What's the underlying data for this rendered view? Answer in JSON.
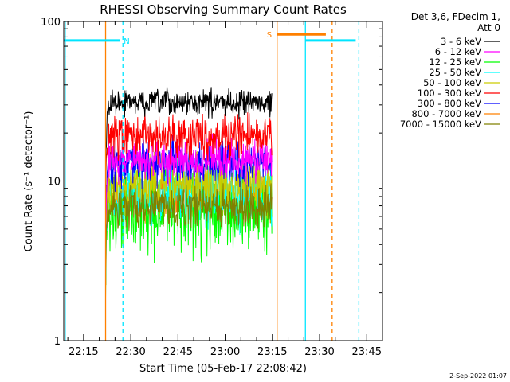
{
  "chart_data": {
    "type": "line",
    "title": "RHESSI Observing Summary Count Rates",
    "xlabel": "Start Time (05-Feb-17 22:08:42)",
    "ylabel": "Count Rate (s⁻¹ detector⁻¹)",
    "y_scale": "log",
    "ylim": [
      1,
      100
    ],
    "xlim": [
      "22:08:42",
      "23:50:00"
    ],
    "x_ticks": [
      "22:15",
      "22:30",
      "22:45",
      "23:00",
      "23:15",
      "23:30",
      "23:45"
    ],
    "y_ticks": [
      "1",
      "10",
      "100"
    ],
    "legend_header": [
      "Det 3,6, FDecim 1,",
      "Att 0"
    ],
    "legend_position": "top-right",
    "footer_date": "2-Sep-2022 01:07",
    "data_start": "22:22:00",
    "data_end": "23:14:50",
    "series": [
      {
        "name": "3 - 6 keV",
        "color": "#000000",
        "level": 31,
        "spread": 0.06
      },
      {
        "name": "6 - 12 keV",
        "color": "#ff00ff",
        "level": 13.5,
        "spread": 0.1
      },
      {
        "name": "12 - 25 keV",
        "color": "#00ff00",
        "level": 6.8,
        "spread": 0.22
      },
      {
        "name": "25 - 50 keV",
        "color": "#00ffff",
        "level": 8.2,
        "spread": 0.15
      },
      {
        "name": "50 - 100 keV",
        "color": "#cccc00",
        "level": 9.5,
        "spread": 0.14
      },
      {
        "name": "100 - 300 keV",
        "color": "#ff0000",
        "level": 19,
        "spread": 0.1
      },
      {
        "name": "300 - 800 keV",
        "color": "#0000ff",
        "level": 13,
        "spread": 0.1
      },
      {
        "name": "800 - 7000 keV",
        "color": "#ff8000",
        "level": 8,
        "spread": 0.12
      },
      {
        "name": "7000 - 15000 keV",
        "color": "#808000",
        "level": 7,
        "spread": 0.1
      }
    ],
    "flags": [
      {
        "label": "N",
        "color": "#00e5ff",
        "start": "22:08:42",
        "end": "22:26:30",
        "level": 76
      },
      {
        "label": "S",
        "color": "#ff8000",
        "start": "23:16:30",
        "end": "23:32:00",
        "level": 83
      },
      {
        "label": "",
        "color": "#00e5ff",
        "start": "23:25:30",
        "end": "23:41:30",
        "level": 76
      }
    ],
    "vlines": [
      {
        "time": "22:09:10",
        "color": "#00e5ff",
        "dash": false
      },
      {
        "time": "22:27:30",
        "color": "#00e5ff",
        "dash": true
      },
      {
        "time": "22:22:00",
        "color": "#ff8000",
        "dash": false
      },
      {
        "time": "23:16:30",
        "color": "#ff8000",
        "dash": false
      },
      {
        "time": "23:25:30",
        "color": "#00e5ff",
        "dash": false
      },
      {
        "time": "23:34:00",
        "color": "#ff8000",
        "dash": true
      },
      {
        "time": "23:42:30",
        "color": "#00e5ff",
        "dash": true
      }
    ]
  }
}
